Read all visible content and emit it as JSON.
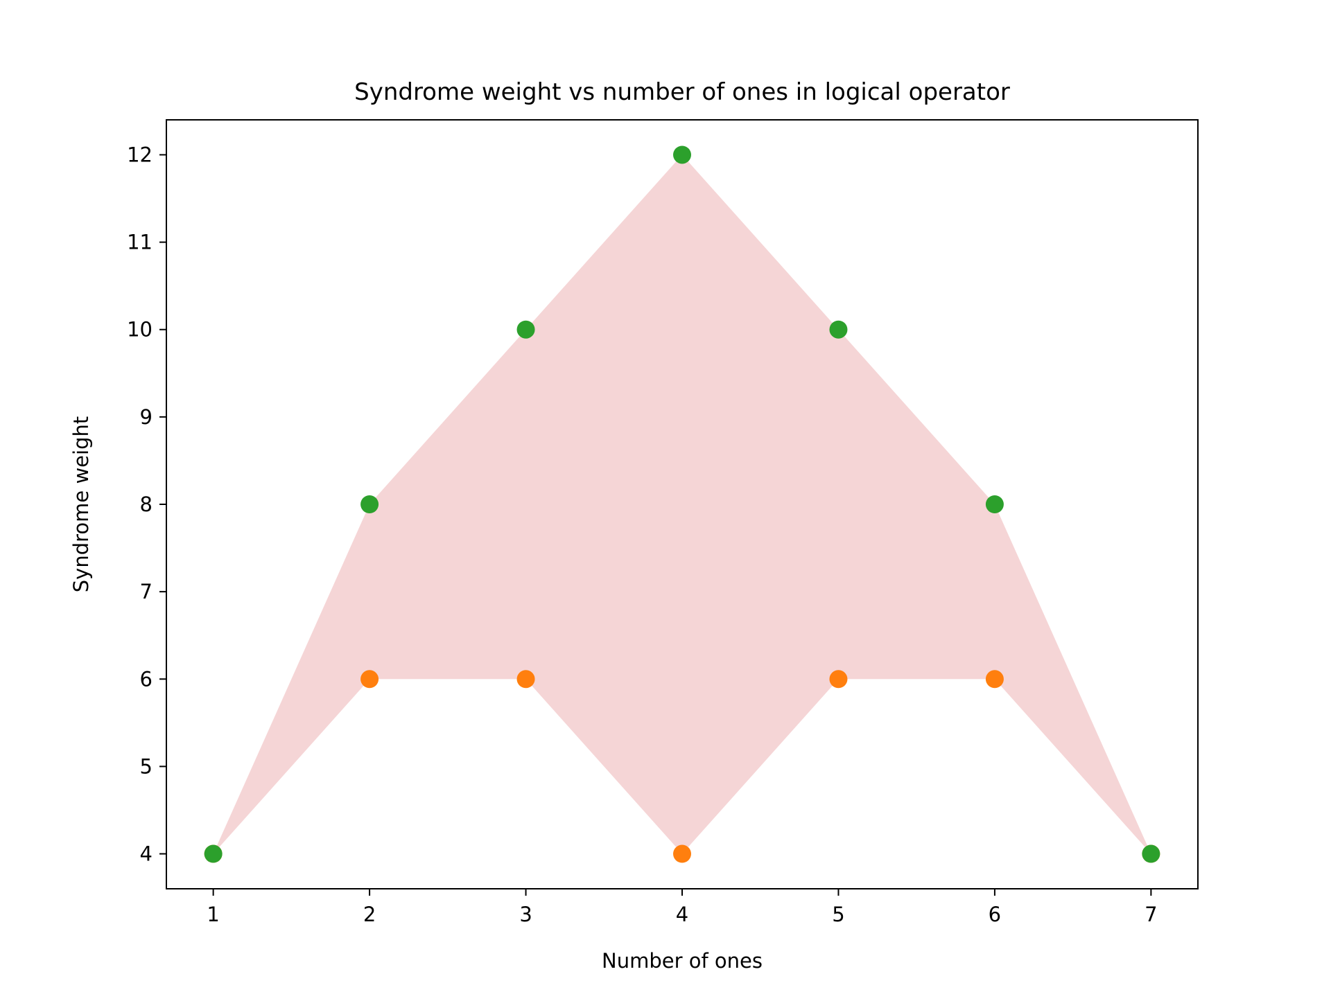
{
  "chart_data": {
    "type": "scatter",
    "title": "Syndrome weight vs number of ones in logical operator",
    "xlabel": "Number of ones",
    "ylabel": "Syndrome weight",
    "xlim": [
      0.7,
      7.3
    ],
    "ylim": [
      3.6,
      12.4
    ],
    "xticks": [
      1,
      2,
      3,
      4,
      5,
      6,
      7
    ],
    "yticks": [
      4,
      5,
      6,
      7,
      8,
      9,
      10,
      11,
      12
    ],
    "grid": false,
    "legend": "none",
    "fill_between": {
      "x": [
        1,
        2,
        3,
        4,
        5,
        6,
        7
      ],
      "lower": [
        4,
        6,
        6,
        4,
        6,
        6,
        4
      ],
      "upper": [
        4,
        8,
        10,
        12,
        10,
        8,
        4
      ],
      "color": "#f5d5d6"
    },
    "series": [
      {
        "color": "#ff7f0e",
        "points": [
          [
            1,
            4
          ],
          [
            2,
            6
          ],
          [
            3,
            6
          ],
          [
            4,
            4
          ],
          [
            5,
            6
          ],
          [
            6,
            6
          ],
          [
            7,
            4
          ]
        ]
      },
      {
        "color": "#2ca02c",
        "points": [
          [
            1,
            4
          ],
          [
            2,
            8
          ],
          [
            3,
            10
          ],
          [
            4,
            12
          ],
          [
            5,
            10
          ],
          [
            6,
            8
          ],
          [
            7,
            4
          ]
        ]
      }
    ]
  }
}
